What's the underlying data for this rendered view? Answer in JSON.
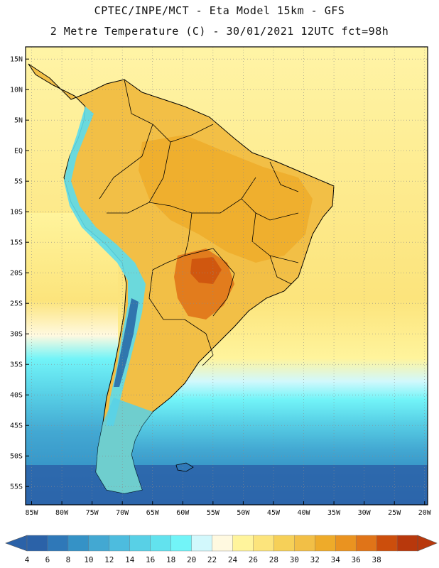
{
  "header": {
    "line1": "CPTEC/INPE/MCT -  Eta Model 15km - GFS",
    "line2": "2 Metre Temperature (C) - 30/01/2021 12UTC fct=98h"
  },
  "map": {
    "lon_range": [
      -86,
      -19.5
    ],
    "lat_range": [
      -58,
      17
    ],
    "lat_ticks": [
      {
        "value": 15,
        "label": "15N"
      },
      {
        "value": 10,
        "label": "10N"
      },
      {
        "value": 5,
        "label": "5N"
      },
      {
        "value": 0,
        "label": "EQ"
      },
      {
        "value": -5,
        "label": "5S"
      },
      {
        "value": -10,
        "label": "10S"
      },
      {
        "value": -15,
        "label": "15S"
      },
      {
        "value": -20,
        "label": "20S"
      },
      {
        "value": -25,
        "label": "25S"
      },
      {
        "value": -30,
        "label": "30S"
      },
      {
        "value": -35,
        "label": "35S"
      },
      {
        "value": -40,
        "label": "40S"
      },
      {
        "value": -45,
        "label": "45S"
      },
      {
        "value": -50,
        "label": "50S"
      },
      {
        "value": -55,
        "label": "55S"
      }
    ],
    "lon_ticks": [
      {
        "value": -85,
        "label": "85W"
      },
      {
        "value": -80,
        "label": "80W"
      },
      {
        "value": -75,
        "label": "75W"
      },
      {
        "value": -70,
        "label": "70W"
      },
      {
        "value": -65,
        "label": "65W"
      },
      {
        "value": -60,
        "label": "60W"
      },
      {
        "value": -55,
        "label": "55W"
      },
      {
        "value": -50,
        "label": "50W"
      },
      {
        "value": -45,
        "label": "45W"
      },
      {
        "value": -40,
        "label": "40W"
      },
      {
        "value": -35,
        "label": "35W"
      },
      {
        "value": -30,
        "label": "30W"
      },
      {
        "value": -25,
        "label": "25W"
      },
      {
        "value": -20,
        "label": "20W"
      }
    ],
    "colors": {
      "ocean_warm": "#fce47c",
      "land_base": "#f2bf46",
      "land_hot": "#eaa328",
      "land_veryhot": "#e07a1c",
      "andes_cold": "#5cdcec",
      "andes_colder": "#3a9ccc",
      "andes_coldest": "#2a6aa8",
      "coast_line": "#000000",
      "grid_line": "#8a8a8a"
    }
  },
  "colorbar": {
    "labels": [
      "4",
      "6",
      "8",
      "10",
      "12",
      "14",
      "16",
      "18",
      "20",
      "22",
      "24",
      "26",
      "28",
      "30",
      "32",
      "34",
      "36",
      "38"
    ],
    "colors": [
      "#2b62a8",
      "#2f78b8",
      "#3592c6",
      "#43a8d2",
      "#4dbcde",
      "#58d0e6",
      "#62e2ee",
      "#72f4f8",
      "#d2f8fc",
      "#fff9e0",
      "#fff49c",
      "#fce47c",
      "#f6d058",
      "#f2bf46",
      "#eeab2a",
      "#ea9320",
      "#e07418",
      "#cc4e0c",
      "#b8380c"
    ]
  }
}
